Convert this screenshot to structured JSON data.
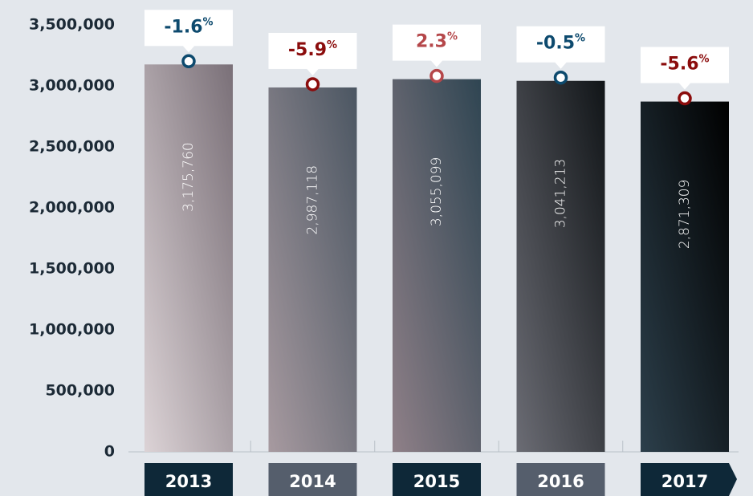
{
  "chart_data": {
    "type": "bar",
    "categories": [
      "2013",
      "2014",
      "2015",
      "2016",
      "2017"
    ],
    "values": [
      3175760,
      2987118,
      3055099,
      3041213,
      2871309
    ],
    "value_labels": [
      "3,175,760",
      "2,987,118",
      "3,055,099",
      "3,041,213",
      "2,871,309"
    ],
    "change_values": [
      -1.6,
      -5.9,
      2.3,
      -0.5,
      -5.6
    ],
    "change_unit": "%",
    "change_colors": [
      "#0d4a6e",
      "#8b0c0c",
      "#b5474a",
      "#0d4a6e",
      "#8b0c0c"
    ],
    "bar_gradients": [
      [
        "#dcd3d6",
        "#7a7078"
      ],
      [
        "#a79aa0",
        "#4b5662"
      ],
      [
        "#8f8088",
        "#2f4552"
      ],
      [
        "#6b6c74",
        "#111518"
      ],
      [
        "#2c3f4b",
        "#000000"
      ]
    ],
    "label_colors": [
      "#0e2838",
      "#555e6c",
      "#0e2838",
      "#555e6c",
      "#0e2838"
    ],
    "ylim": [
      0,
      3500000
    ],
    "yticks": [
      0,
      {
        "value": 500000,
        "label": "500,000"
      },
      {
        "value": 1000000,
        "label": "1,000,000"
      },
      {
        "value": 1500000,
        "label": "1,500,000"
      },
      {
        "value": 2000000,
        "label": "2,000,000"
      },
      {
        "value": 2500000,
        "label": "2,500,000"
      },
      {
        "value": 3000000,
        "label": "3,000,000"
      },
      {
        "value": 3500000,
        "label": "3,500,000"
      }
    ]
  }
}
